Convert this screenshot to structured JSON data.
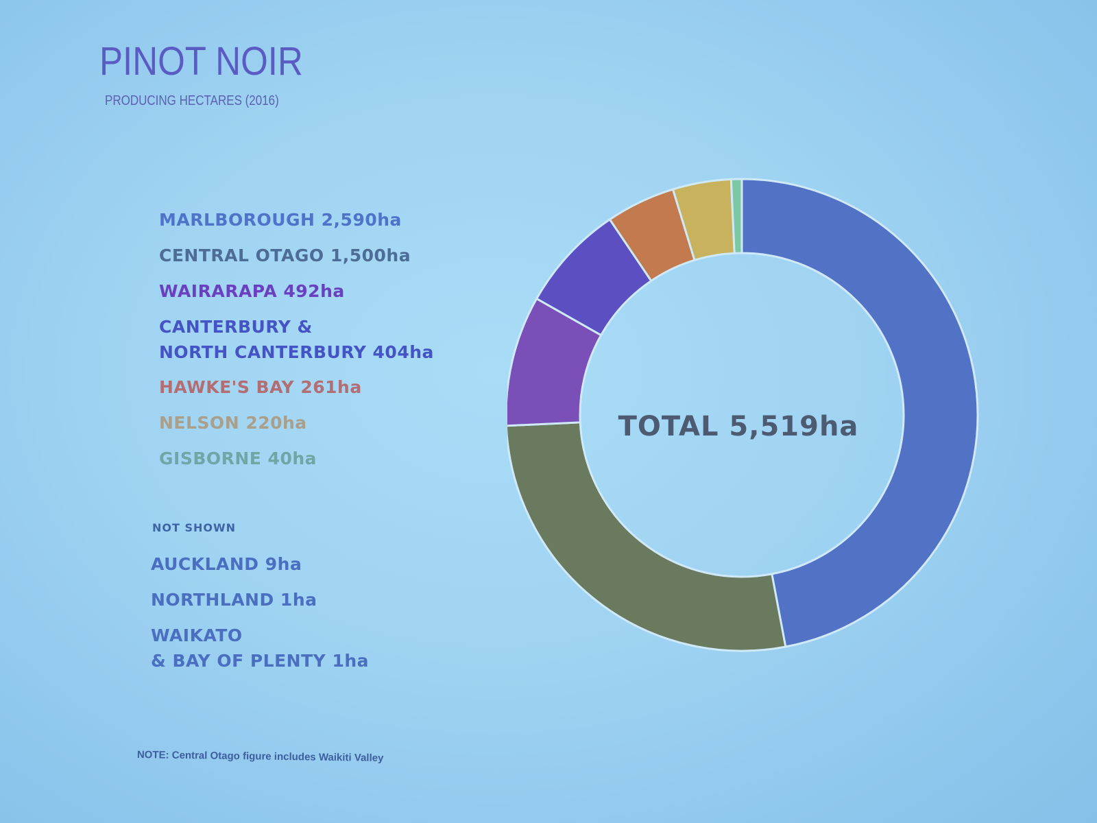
{
  "title": "PINOT NOIR",
  "subtitle": "PRODUCING HECTARES (2016)",
  "legend": [
    {
      "label": "MARLBOROUGH 2,590ha",
      "color": "#4e73c9"
    },
    {
      "label": "CENTRAL OTAGO 1,500ha",
      "color": "#4d6d96"
    },
    {
      "label": "WAIRARAPA 492ha",
      "color": "#6a3fc0"
    },
    {
      "label": "CANTERBURY &\nNORTH CANTERBURY 404ha",
      "color": "#4554c4"
    },
    {
      "label": "HAWKE'S BAY 261ha",
      "color": "#b26e73"
    },
    {
      "label": "NELSON 220ha",
      "color": "#a99f8a"
    },
    {
      "label": "GISBORNE 40ha",
      "color": "#6ea8a6"
    }
  ],
  "not_shown": {
    "label": "NOT SHOWN",
    "items": [
      "AUCKLAND 9ha",
      "NORTHLAND 1ha",
      "WAIKATO\n& BAY OF PLENTY 1ha"
    ]
  },
  "note": "NOTE: Central Otago figure includes Waikiti Valley",
  "chart_data": {
    "type": "pie",
    "variant": "donut",
    "center_label": "TOTAL 5,519ha",
    "total": 5519,
    "unit": "ha",
    "slices": [
      {
        "label": "MARLBOROUGH",
        "value": 2590,
        "color": "#5272c6"
      },
      {
        "label": "CENTRAL OTAGO",
        "value": 1500,
        "color": "#6a7a5e"
      },
      {
        "label": "WAIRARAPA",
        "value": 492,
        "color": "#7a4fb8"
      },
      {
        "label": "CANTERBURY & NORTH CANTERBURY",
        "value": 404,
        "color": "#5c4fc2"
      },
      {
        "label": "HAWKE'S BAY",
        "value": 261,
        "color": "#c27a4e"
      },
      {
        "label": "NELSON",
        "value": 220,
        "color": "#c8b25e"
      },
      {
        "label": "GISBORNE",
        "value": 40,
        "color": "#7cc7a4"
      }
    ],
    "slice_order": [
      "MARLBOROUGH",
      "CENTRAL OTAGO",
      "WAIRARAPA",
      "CANTERBURY & NORTH CANTERBURY",
      "HAWKE'S BAY",
      "NELSON",
      "GISBORNE"
    ]
  }
}
